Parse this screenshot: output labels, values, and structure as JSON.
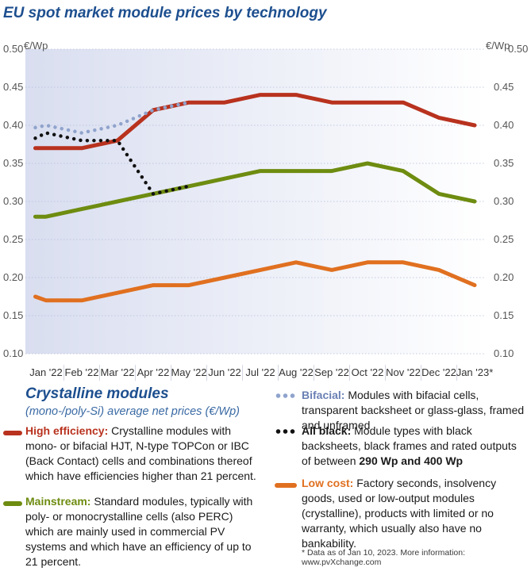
{
  "chart_data": {
    "type": "line",
    "title": "EU spot market module prices by technology",
    "ylabel_left": "€/Wp",
    "ylabel_right": "€/Wp",
    "ylim": [
      0.1,
      0.5
    ],
    "yticks": [
      "0.50",
      "0.45",
      "0.40",
      "0.35",
      "0.30",
      "0.25",
      "0.20",
      "0.15",
      "0.10"
    ],
    "categories": [
      "Jan '22",
      "Feb '22",
      "Mar '22",
      "Apr '22",
      "May '22",
      "Jun '22",
      "Jul '22",
      "Aug '22",
      "Sep '22",
      "Oct '22",
      "Nov '22",
      "Dec '22",
      "Jan '23*"
    ],
    "series": [
      {
        "name": "Low cost",
        "style": "solid",
        "color": "#e07020",
        "x": [
          -0.3,
          0,
          0.6,
          1.0,
          2.0,
          3.0,
          4.0,
          5.0,
          6.0,
          7.0,
          8.0,
          9.0,
          10.0,
          11.0,
          12.0
        ],
        "values": [
          0.175,
          0.17,
          0.17,
          0.17,
          0.18,
          0.19,
          0.19,
          0.2,
          0.21,
          0.22,
          0.21,
          0.22,
          0.22,
          0.21,
          0.19
        ]
      },
      {
        "name": "Mainstream",
        "style": "solid",
        "color": "#6e8c10",
        "x": [
          -0.3,
          0,
          1.0,
          2.0,
          3.0,
          4.0,
          5.0,
          6.0,
          7.0,
          8.0,
          9.0,
          10.0,
          11.0,
          12.0
        ],
        "values": [
          0.28,
          0.28,
          0.29,
          0.3,
          0.31,
          0.32,
          0.33,
          0.34,
          0.34,
          0.34,
          0.35,
          0.34,
          0.31,
          0.3
        ]
      },
      {
        "name": "High efficiency",
        "style": "solid",
        "color": "#b8321e",
        "x": [
          -0.3,
          0,
          1.0,
          2.0,
          3.0,
          4.0,
          5.0,
          6.0,
          7.0,
          8.0,
          9.0,
          10.0,
          11.0,
          12.0
        ],
        "values": [
          0.37,
          0.37,
          0.37,
          0.38,
          0.42,
          0.43,
          0.43,
          0.44,
          0.44,
          0.43,
          0.43,
          0.43,
          0.41,
          0.4
        ]
      },
      {
        "name": "All black",
        "style": "dotted",
        "color": "#111111",
        "x": [
          -0.3,
          0,
          0.5,
          1.0,
          1.5,
          2.0,
          2.5,
          3.0,
          3.5,
          4.0
        ],
        "values": [
          0.383,
          0.39,
          0.385,
          0.38,
          0.38,
          0.38,
          0.345,
          0.31,
          0.315,
          0.32
        ]
      },
      {
        "name": "Bifacial",
        "style": "dotted",
        "color": "#8fa3cc",
        "x": [
          -0.3,
          0,
          0.5,
          1.0,
          1.5,
          2.0,
          2.5,
          3.0,
          3.5,
          4.0
        ],
        "values": [
          0.397,
          0.4,
          0.395,
          0.39,
          0.395,
          0.4,
          0.41,
          0.42,
          0.425,
          0.43
        ]
      }
    ],
    "grid": true,
    "legend_position": "bottom"
  },
  "legend": {
    "heading": "Crystalline modules",
    "subheading": "(mono-/poly-Si) average net prices (€/Wp)",
    "items": [
      {
        "key": "High efficiency",
        "label": "High efficiency:",
        "text": "Crystalline modules with mono- or bifacial HJT, N-type TOPCon or IBC (Back Contact) cells and combinations thereof which have efficiencies higher than 21 percent."
      },
      {
        "key": "Mainstream",
        "label": "Mainstream:",
        "text": "Standard modules, typically with poly- or monocrystalline cells (also PERC) which are mainly used in commercial PV systems and which have an efficiency of up to 21 percent."
      },
      {
        "key": "Bifacial",
        "label": "Bifacial:",
        "text": "Modules with bifacial cells, transparent backsheet or glass-glass, framed and unframed"
      },
      {
        "key": "All black",
        "label": "All black:",
        "text": "Module types with black backsheets, black frames and rated outputs of between",
        "text_bold": "290 Wp and 400 Wp"
      },
      {
        "key": "Low cost",
        "label": "Low cost:",
        "text": "Factory seconds, insolvency goods, used or low-output modules (crystalline), products with limited or no warranty, which usually also have no bankability."
      }
    ],
    "footnote": "* Data as of Jan 10, 2023. More information: www.pvXchange.com"
  },
  "colors": {
    "title": "#1d4f8f",
    "high_efficiency": "#b8321e",
    "mainstream": "#6e8c10",
    "low_cost": "#e07020",
    "bifacial": "#8fa3cc",
    "all_black": "#111111"
  }
}
